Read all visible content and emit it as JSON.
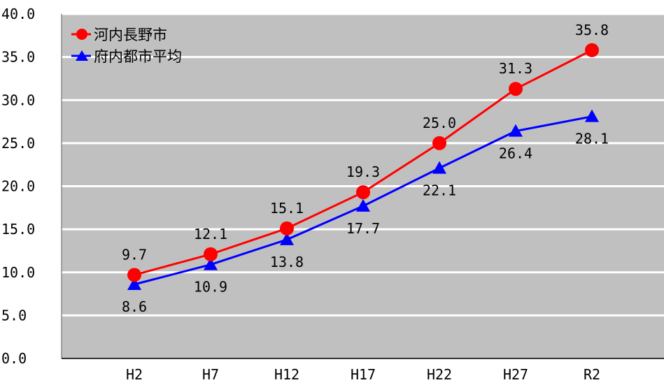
{
  "chart_data": {
    "type": "line",
    "categories": [
      "H2",
      "H7",
      "H12",
      "H17",
      "H22",
      "H27",
      "R2"
    ],
    "ylim": [
      0,
      40
    ],
    "yticks": [
      "0.0",
      "5.0",
      "10.0",
      "15.0",
      "20.0",
      "25.0",
      "30.0",
      "35.0",
      "40.0"
    ],
    "grid": true,
    "legend_position": "top-left",
    "plot_background": "#c0c0c0",
    "series": [
      {
        "name": "河内長野市",
        "values": [
          9.7,
          12.1,
          15.1,
          19.3,
          25.0,
          31.3,
          35.8
        ],
        "labels": [
          "9.7",
          "12.1",
          "15.1",
          "19.3",
          "25.0",
          "31.3",
          "35.8"
        ],
        "color": "#ff0000",
        "marker": "circle",
        "label_position": "above"
      },
      {
        "name": "府内都市平均",
        "values": [
          8.6,
          10.9,
          13.8,
          17.7,
          22.1,
          26.4,
          28.1
        ],
        "labels": [
          "8.6",
          "10.9",
          "13.8",
          "17.7",
          "22.1",
          "26.4",
          "28.1"
        ],
        "color": "#0000ff",
        "marker": "triangle",
        "label_position": "below"
      }
    ]
  }
}
